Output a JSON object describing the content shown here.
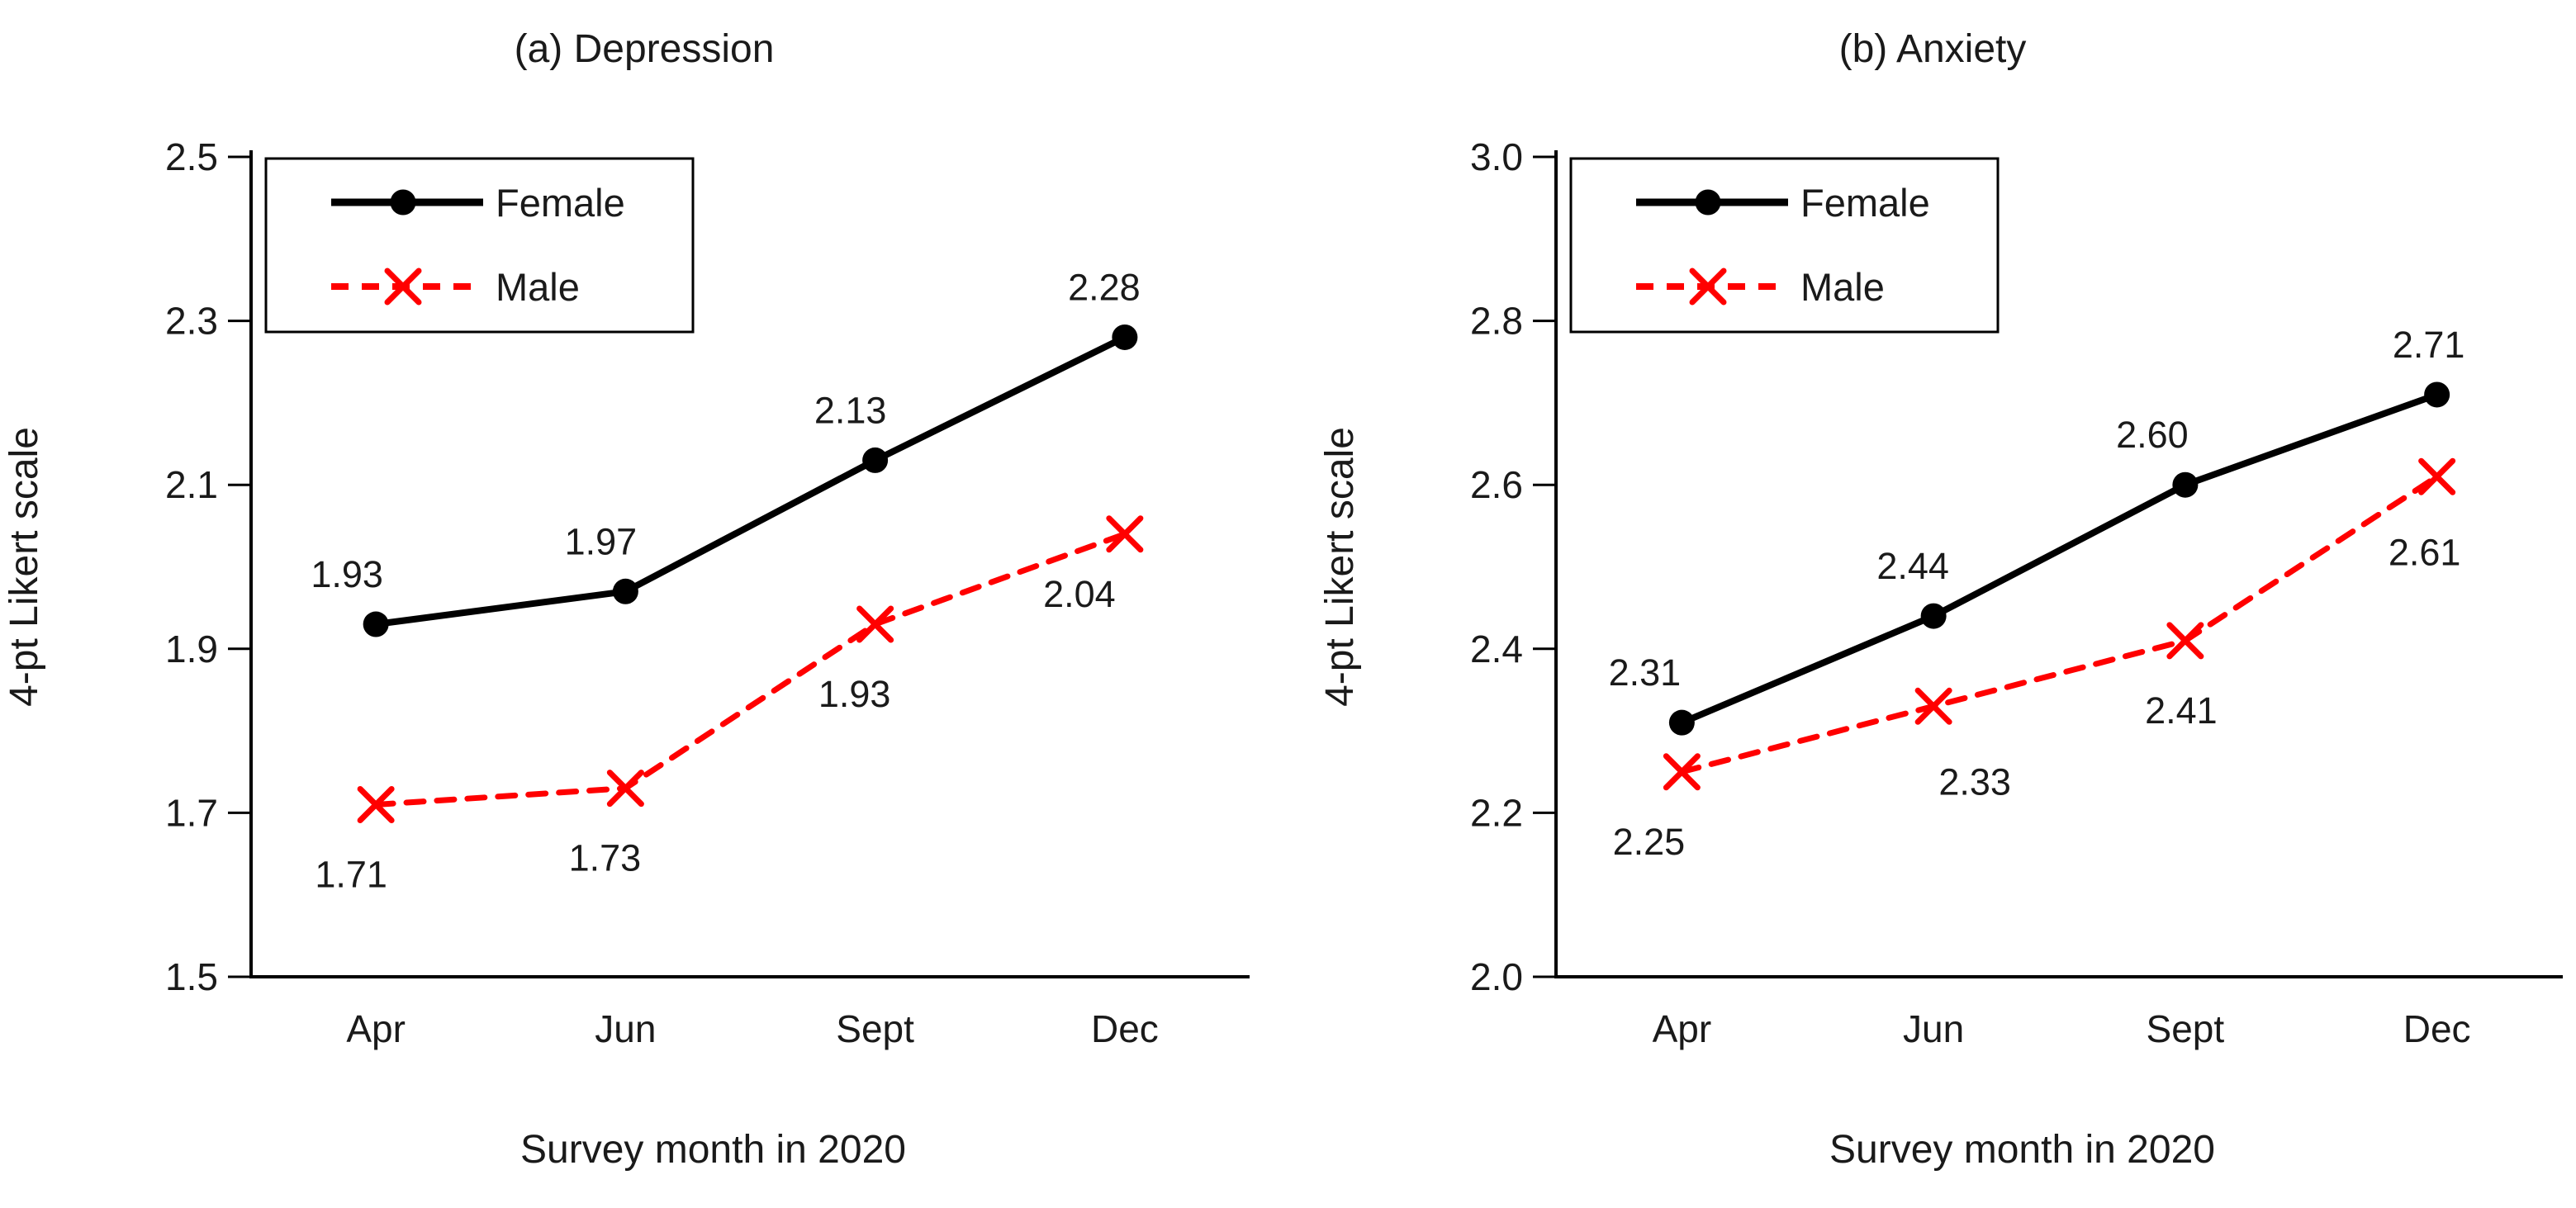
{
  "figure": {
    "background": "#ffffff",
    "text_color": "#1a1a1a",
    "axis_color": "#000000"
  },
  "chart_data": [
    {
      "type": "line",
      "title": "(a) Depression",
      "xlabel": "Survey month in 2020",
      "ylabel": "4-pt Likert scale",
      "categories": [
        "Apr",
        "Jun",
        "Sept",
        "Dec"
      ],
      "ylim": [
        1.5,
        2.5
      ],
      "ytick_labels": [
        "2.5",
        "2.3",
        "2.1",
        "1.9",
        "1.7",
        "1.5"
      ],
      "grid": false,
      "legend_position": "top-left",
      "series": [
        {
          "name": "Female",
          "values": [
            1.93,
            1.97,
            2.13,
            2.28
          ],
          "labels": [
            "1.93",
            "1.97",
            "2.13",
            "2.28"
          ],
          "label_offsets": [
            [
              -35,
              -45
            ],
            [
              -30,
              -45
            ],
            [
              -30,
              -45
            ],
            [
              -25,
              -45
            ]
          ],
          "color": "#000000",
          "line_style": "solid",
          "marker": "circle"
        },
        {
          "name": "Male",
          "values": [
            1.71,
            1.73,
            1.93,
            2.04
          ],
          "labels": [
            "1.71",
            "1.73",
            "1.93",
            "2.04"
          ],
          "label_offsets": [
            [
              -30,
              100
            ],
            [
              -25,
              100
            ],
            [
              -25,
              100
            ],
            [
              -55,
              88
            ]
          ],
          "color": "#ff0000",
          "line_style": "dashed",
          "marker": "x"
        }
      ]
    },
    {
      "type": "line",
      "title": "(b) Anxiety",
      "xlabel": "Survey month in 2020",
      "ylabel": "4-pt Likert scale",
      "categories": [
        "Apr",
        "Jun",
        "Sept",
        "Dec"
      ],
      "ylim": [
        2.0,
        3.0
      ],
      "ytick_labels": [
        "3.0",
        "2.8",
        "2.6",
        "2.4",
        "2.2",
        "2.0"
      ],
      "grid": false,
      "legend_position": "top-left",
      "series": [
        {
          "name": "Female",
          "values": [
            2.31,
            2.44,
            2.6,
            2.71
          ],
          "labels": [
            "2.31",
            "2.44",
            "2.60",
            "2.71"
          ],
          "label_offsets": [
            [
              -45,
              -45
            ],
            [
              -25,
              -45
            ],
            [
              -40,
              -45
            ],
            [
              -10,
              -45
            ]
          ],
          "color": "#000000",
          "line_style": "solid",
          "marker": "circle"
        },
        {
          "name": "Male",
          "values": [
            2.25,
            2.33,
            2.41,
            2.61
          ],
          "labels": [
            "2.25",
            "2.33",
            "2.41",
            "2.61"
          ],
          "label_offsets": [
            [
              -40,
              100
            ],
            [
              50,
              107
            ],
            [
              -5,
              100
            ],
            [
              -15,
              107
            ]
          ],
          "color": "#ff0000",
          "line_style": "dashed",
          "marker": "x"
        }
      ]
    }
  ]
}
